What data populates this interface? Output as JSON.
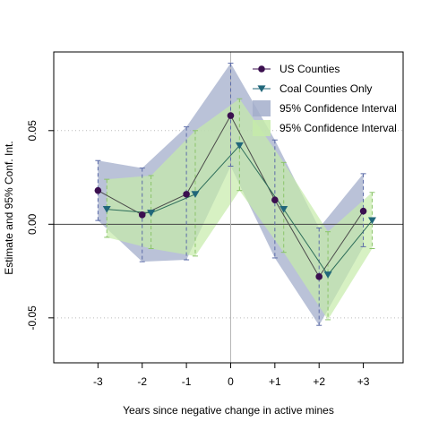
{
  "chart_data": {
    "type": "line",
    "title": "",
    "xlabel": "Years since negative change in active mines",
    "ylabel": "Estimate and 95% Conf. Int.",
    "categories": [
      "-3",
      "-2",
      "-1",
      "0",
      "+1",
      "+2",
      "+3"
    ],
    "x": [
      -3,
      -2,
      -1,
      0,
      1,
      2,
      3
    ],
    "xlim": [
      -4.0,
      3.9
    ],
    "ylim": [
      -0.074,
      0.092
    ],
    "yticks": [
      -0.05,
      0.0,
      0.05
    ],
    "ytick_labels": [
      "-0.05",
      "0.00",
      "0.05"
    ],
    "grid": "dotted horizontal at y ticks; solid reference lines at y=0 and x=0",
    "legend_position": "top-right",
    "series": [
      {
        "name": "US Counties",
        "values": [
          0.018,
          0.005,
          0.016,
          0.058,
          0.013,
          -0.028,
          0.007
        ],
        "ci_lower": [
          0.002,
          -0.02,
          -0.019,
          0.031,
          -0.018,
          -0.054,
          -0.012
        ],
        "ci_upper": [
          0.034,
          0.03,
          0.052,
          0.086,
          0.045,
          -0.002,
          0.027
        ],
        "x_offset": 0,
        "color": "#3b0f4f",
        "marker": "circle"
      },
      {
        "name": "Coal Counties Only",
        "values": [
          0.008,
          0.006,
          0.016,
          0.042,
          0.008,
          -0.027,
          0.002
        ],
        "ci_lower": [
          -0.007,
          -0.013,
          -0.017,
          0.018,
          -0.015,
          -0.051,
          -0.013
        ],
        "ci_upper": [
          0.024,
          0.026,
          0.05,
          0.067,
          0.033,
          -0.004,
          0.017
        ],
        "x_offset": 0.2,
        "color": "#21677a",
        "marker": "triangle-down"
      }
    ],
    "bands": [
      {
        "name": "95% Confidence Interval",
        "series": 0,
        "color": "#a3aecb"
      },
      {
        "name": "95% Confidence Interval",
        "series": 1,
        "color": "#c6ebaa"
      }
    ]
  }
}
